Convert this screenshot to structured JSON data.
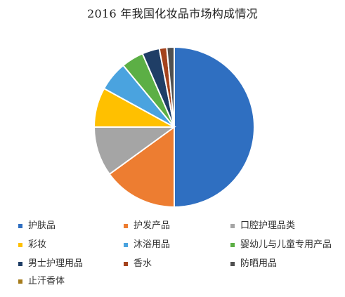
{
  "chart_data": {
    "type": "pie",
    "title": "2016 年我国化妆品市场构成情况",
    "legend_position": "bottom",
    "slices": [
      {
        "label": "护肤品",
        "value": 50.0,
        "color": "#2F6FC1"
      },
      {
        "label": "护发产品",
        "value": 15.0,
        "color": "#ED7D31"
      },
      {
        "label": "口腔护理品类",
        "value": 10.0,
        "color": "#A5A5A5"
      },
      {
        "label": "彩妆",
        "value": 8.0,
        "color": "#FFC000"
      },
      {
        "label": "沐浴用品",
        "value": 6.0,
        "color": "#4AA3DF"
      },
      {
        "label": "婴幼儿与儿童专用产品",
        "value": 4.5,
        "color": "#5CAF45"
      },
      {
        "label": "男士护理用品",
        "value": 3.5,
        "color": "#1F3E66"
      },
      {
        "label": "香水",
        "value": 1.5,
        "color": "#A4431D"
      },
      {
        "label": "防晒用品",
        "value": 1.5,
        "color": "#505050"
      },
      {
        "label": "止汗香体",
        "value": 0.0,
        "color": "#A67C1C"
      }
    ]
  }
}
